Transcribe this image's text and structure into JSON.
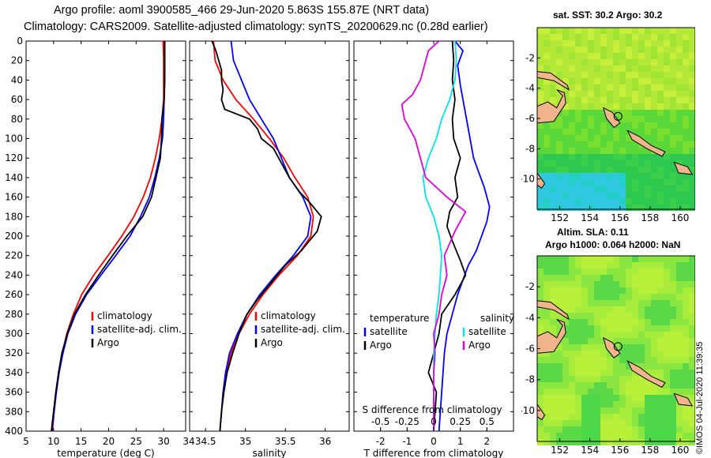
{
  "header": {
    "line1": "Argo profile: aoml 3900585_466 29-Jun-2020 5.863S 155.87E (NRT data)",
    "line2": "Climatology: CARS2009. Satellite-adjusted climatology: synTS_20200629.nc (0.28d earlier)"
  },
  "credit": "©IMOS 04-Jul-2020 11:39:35",
  "colors": {
    "climatology": "#ff0000",
    "satellite": "#0000ff",
    "argo": "#000000",
    "sat_salinity": "#00e5e5",
    "argo_salinity": "#e000e0"
  },
  "chart_data": [
    {
      "type": "line",
      "name": "temperature-profile",
      "xlabel": "temperature (deg C)",
      "ylabel": "",
      "xlim": [
        5,
        34
      ],
      "ylim": [
        400,
        0
      ],
      "xticks": [
        5,
        10,
        15,
        20,
        25,
        30
      ],
      "yticks": [
        0,
        20,
        40,
        60,
        80,
        100,
        120,
        140,
        160,
        180,
        200,
        220,
        240,
        260,
        280,
        300,
        320,
        340,
        360,
        380,
        400
      ],
      "legend": [
        "climatology",
        "satellite-adj. clim.",
        "Argo"
      ],
      "series": [
        {
          "name": "climatology",
          "color": "#ff0000",
          "points": [
            [
              29.9,
              0
            ],
            [
              30,
              20
            ],
            [
              30,
              40
            ],
            [
              30,
              60
            ],
            [
              29.7,
              80
            ],
            [
              29.2,
              100
            ],
            [
              28.5,
              120
            ],
            [
              27.6,
              140
            ],
            [
              26.3,
              160
            ],
            [
              24.6,
              180
            ],
            [
              22.4,
              200
            ],
            [
              19.9,
              220
            ],
            [
              17.3,
              240
            ],
            [
              15.1,
              260
            ],
            [
              13.6,
              280
            ],
            [
              12.4,
              300
            ],
            [
              11.6,
              320
            ],
            [
              11,
              340
            ],
            [
              10.5,
              360
            ],
            [
              10.1,
              380
            ],
            [
              9.8,
              400
            ]
          ]
        },
        {
          "name": "satellite-adj. clim.",
          "color": "#0000ff",
          "points": [
            [
              30.2,
              0
            ],
            [
              30.2,
              20
            ],
            [
              30.2,
              40
            ],
            [
              30.1,
              60
            ],
            [
              30,
              80
            ],
            [
              29.8,
              100
            ],
            [
              29.2,
              120
            ],
            [
              28.4,
              140
            ],
            [
              27.4,
              160
            ],
            [
              25.8,
              180
            ],
            [
              23.9,
              200
            ],
            [
              21.3,
              220
            ],
            [
              18.6,
              240
            ],
            [
              16,
              260
            ],
            [
              14,
              280
            ],
            [
              12.6,
              300
            ],
            [
              11.7,
              320
            ],
            [
              11,
              340
            ],
            [
              10.5,
              360
            ],
            [
              10.1,
              380
            ],
            [
              9.7,
              400
            ]
          ]
        },
        {
          "name": "Argo",
          "color": "#000000",
          "points": [
            [
              30.2,
              0
            ],
            [
              30.2,
              20
            ],
            [
              30.2,
              40
            ],
            [
              30.1,
              60
            ],
            [
              29.7,
              80
            ],
            [
              29.6,
              100
            ],
            [
              29.4,
              120
            ],
            [
              28.6,
              140
            ],
            [
              27.8,
              160
            ],
            [
              26.2,
              180
            ],
            [
              23.3,
              200
            ],
            [
              20.7,
              220
            ],
            [
              18.2,
              240
            ],
            [
              15.8,
              260
            ],
            [
              13.8,
              280
            ],
            [
              12.5,
              300
            ],
            [
              11.5,
              320
            ],
            [
              10.9,
              340
            ],
            [
              10.4,
              360
            ],
            [
              10,
              380
            ],
            [
              9.6,
              400
            ]
          ]
        }
      ]
    },
    {
      "type": "line",
      "name": "salinity-profile",
      "xlabel": "salinity",
      "ylabel": "",
      "xlim": [
        34.3,
        36.3
      ],
      "ylim": [
        400,
        0
      ],
      "xticks": [
        34.5,
        35,
        35.5,
        36
      ],
      "xticklabels": [
        "34.5",
        "35",
        "35.5",
        "36"
      ],
      "legend": [
        "climatology",
        "satellite-adj. clim.",
        "Argo"
      ],
      "series": [
        {
          "name": "climatology",
          "color": "#ff0000",
          "points": [
            [
              34.6,
              0
            ],
            [
              34.62,
              20
            ],
            [
              34.72,
              40
            ],
            [
              34.88,
              60
            ],
            [
              35.1,
              80
            ],
            [
              35.3,
              100
            ],
            [
              35.48,
              120
            ],
            [
              35.62,
              140
            ],
            [
              35.78,
              160
            ],
            [
              35.85,
              180
            ],
            [
              35.82,
              200
            ],
            [
              35.65,
              220
            ],
            [
              35.42,
              240
            ],
            [
              35.22,
              260
            ],
            [
              35.05,
              280
            ],
            [
              34.92,
              300
            ],
            [
              34.82,
              320
            ],
            [
              34.76,
              340
            ],
            [
              34.72,
              360
            ],
            [
              34.7,
              380
            ],
            [
              34.68,
              400
            ]
          ]
        },
        {
          "name": "satellite-adj. clim.",
          "color": "#0000ff",
          "points": [
            [
              34.82,
              0
            ],
            [
              34.85,
              20
            ],
            [
              34.95,
              40
            ],
            [
              35.05,
              60
            ],
            [
              35.2,
              80
            ],
            [
              35.35,
              100
            ],
            [
              35.45,
              120
            ],
            [
              35.55,
              140
            ],
            [
              35.72,
              160
            ],
            [
              35.82,
              180
            ],
            [
              35.78,
              200
            ],
            [
              35.6,
              220
            ],
            [
              35.38,
              240
            ],
            [
              35.18,
              260
            ],
            [
              35.02,
              280
            ],
            [
              34.9,
              300
            ],
            [
              34.8,
              320
            ],
            [
              34.75,
              340
            ],
            [
              34.72,
              360
            ],
            [
              34.7,
              380
            ],
            [
              34.68,
              400
            ]
          ]
        },
        {
          "name": "Argo",
          "color": "#000000",
          "points": [
            [
              34.58,
              0
            ],
            [
              34.63,
              10
            ],
            [
              34.7,
              30
            ],
            [
              34.7,
              40
            ],
            [
              34.72,
              50
            ],
            [
              34.7,
              60
            ],
            [
              34.74,
              70
            ],
            [
              35.05,
              80
            ],
            [
              35.15,
              90
            ],
            [
              35.2,
              100
            ],
            [
              35.35,
              110
            ],
            [
              35.45,
              125
            ],
            [
              35.55,
              140
            ],
            [
              35.68,
              155
            ],
            [
              35.8,
              165
            ],
            [
              35.95,
              180
            ],
            [
              35.9,
              195
            ],
            [
              35.7,
              215
            ],
            [
              35.5,
              230
            ],
            [
              35.3,
              250
            ],
            [
              35.15,
              265
            ],
            [
              35.02,
              280
            ],
            [
              34.92,
              300
            ],
            [
              34.84,
              320
            ],
            [
              34.77,
              340
            ],
            [
              34.73,
              360
            ],
            [
              34.7,
              380
            ],
            [
              34.68,
              400
            ]
          ]
        }
      ]
    },
    {
      "type": "line",
      "name": "difference-profile",
      "xlabel": "T difference from climatology",
      "ylabel": "",
      "xlim": [
        -3,
        3
      ],
      "ylim": [
        400,
        0
      ],
      "xticks": [
        -2,
        -1,
        0,
        1,
        2
      ],
      "xticklabels": [
        "-2",
        "-1",
        "0",
        "1",
        "2"
      ],
      "secondary_axis": {
        "label": "S difference from climatology",
        "ticks": [
          -0.5,
          -0.25,
          0,
          0.25,
          0.5
        ],
        "ticklabels": [
          "-0.5",
          "-0.25",
          "0",
          "0.25",
          "0.5"
        ],
        "scale_factor": 4
      },
      "legend_left_title": "temperature",
      "legend_right_title": "salinity",
      "legend": [
        "satellite",
        "Argo",
        "satellite",
        "Argo"
      ],
      "series": [
        {
          "name": "T satellite",
          "color": "#0000ff",
          "points": [
            [
              0.8,
              0
            ],
            [
              1.1,
              10
            ],
            [
              0.9,
              25
            ],
            [
              1.0,
              45
            ],
            [
              1.1,
              60
            ],
            [
              1.2,
              75
            ],
            [
              1.3,
              90
            ],
            [
              1.4,
              105
            ],
            [
              1.5,
              120
            ],
            [
              1.7,
              135
            ],
            [
              1.9,
              150
            ],
            [
              2.1,
              170
            ],
            [
              2.0,
              185
            ],
            [
              1.8,
              200
            ],
            [
              1.6,
              215
            ],
            [
              1.3,
              230
            ],
            [
              1.1,
              245
            ],
            [
              0.9,
              260
            ],
            [
              0.7,
              280
            ],
            [
              0.5,
              300
            ],
            [
              0.4,
              320
            ],
            [
              0.35,
              340
            ],
            [
              0.3,
              360
            ],
            [
              0.25,
              380
            ],
            [
              0.2,
              400
            ]
          ]
        },
        {
          "name": "T Argo",
          "color": "#000000",
          "points": [
            [
              0.7,
              0
            ],
            [
              0.75,
              20
            ],
            [
              0.7,
              40
            ],
            [
              0.8,
              60
            ],
            [
              0.7,
              80
            ],
            [
              0.75,
              100
            ],
            [
              1.0,
              120
            ],
            [
              0.8,
              140
            ],
            [
              0.9,
              160
            ],
            [
              0.6,
              175
            ],
            [
              0.5,
              190
            ],
            [
              0.7,
              205
            ],
            [
              1.0,
              225
            ],
            [
              1.2,
              240
            ],
            [
              0.8,
              260
            ],
            [
              0.3,
              280
            ],
            [
              0.2,
              300
            ],
            [
              0.0,
              320
            ],
            [
              -0.2,
              340
            ],
            [
              0.1,
              360
            ],
            [
              0.05,
              380
            ],
            [
              0.0,
              400
            ]
          ]
        },
        {
          "name": "S satellite",
          "color": "#00e5e5",
          "points": [
            [
              0.8,
              0
            ],
            [
              0.85,
              20
            ],
            [
              0.8,
              40
            ],
            [
              0.6,
              60
            ],
            [
              0.3,
              80
            ],
            [
              0.1,
              100
            ],
            [
              -0.2,
              120
            ],
            [
              -0.4,
              140
            ],
            [
              -0.3,
              160
            ],
            [
              0.0,
              180
            ],
            [
              0.2,
              200
            ],
            [
              0.3,
              220
            ],
            [
              0.25,
              240
            ],
            [
              0.2,
              260
            ],
            [
              0.1,
              280
            ],
            [
              0.05,
              300
            ],
            [
              0.0,
              320
            ],
            [
              0.0,
              340
            ],
            [
              0.0,
              360
            ],
            [
              0.0,
              380
            ],
            [
              0.0,
              400
            ]
          ]
        },
        {
          "name": "S Argo",
          "color": "#e000e0",
          "points": [
            [
              0.2,
              0
            ],
            [
              -0.2,
              10
            ],
            [
              -0.3,
              20
            ],
            [
              -0.5,
              40
            ],
            [
              -0.8,
              55
            ],
            [
              -1.2,
              65
            ],
            [
              -1.1,
              80
            ],
            [
              -0.7,
              100
            ],
            [
              -0.5,
              120
            ],
            [
              -0.3,
              140
            ],
            [
              0.5,
              160
            ],
            [
              1.2,
              175
            ],
            [
              0.8,
              195
            ],
            [
              0.4,
              220
            ],
            [
              0.5,
              240
            ],
            [
              0.3,
              260
            ],
            [
              0.2,
              280
            ],
            [
              0.0,
              300
            ],
            [
              0.05,
              320
            ],
            [
              0.0,
              340
            ],
            [
              0.0,
              360
            ],
            [
              0.0,
              380
            ],
            [
              0.0,
              400
            ]
          ]
        }
      ]
    }
  ],
  "maps": [
    {
      "name": "sst-map",
      "title": "sat. SST: 30.2 Argo: 30.2",
      "xticks": [
        152,
        154,
        156,
        158,
        160
      ],
      "yticks": [
        -2,
        -4,
        -6,
        -8,
        -10
      ],
      "xlim": [
        150.5,
        161
      ],
      "ylim": [
        -12,
        0
      ],
      "marker": {
        "lon": 155.87,
        "lat": -5.863
      }
    },
    {
      "name": "sla-map",
      "title_line1": "Altim. SLA: 0.11",
      "title_line2": "Argo h1000: 0.064 h2000: NaN",
      "xticks": [
        152,
        154,
        156,
        158,
        160
      ],
      "yticks": [
        -2,
        -4,
        -6,
        -8,
        -10
      ],
      "xlim": [
        150.5,
        161
      ],
      "ylim": [
        -12,
        0
      ],
      "marker": {
        "lon": 155.87,
        "lat": -5.863
      }
    }
  ]
}
